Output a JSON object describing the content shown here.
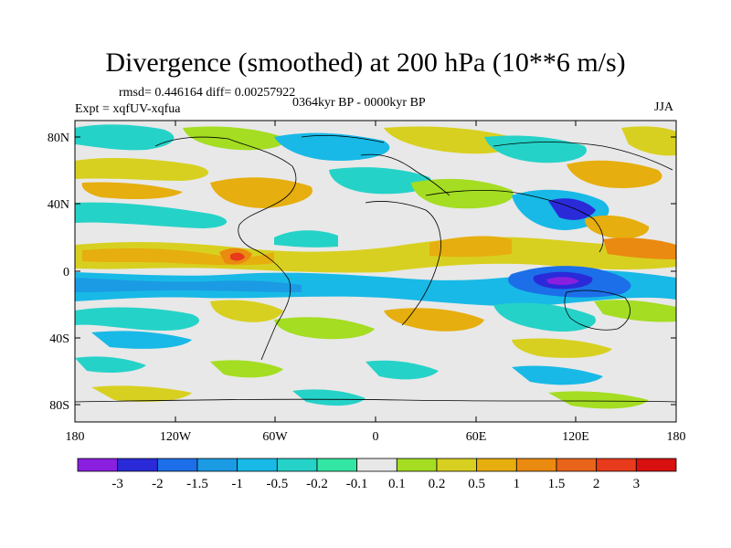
{
  "title": "Divergence (smoothed) at 200 hPa (10**6 m/s)",
  "stats": "rmsd= 0.446164 diff= 0.00257922",
  "period": "0364kyr BP - 0000kyr BP",
  "expt": "Expt = xqfUV-xqfua",
  "season": "JJA",
  "lat_labels": [
    "80N",
    "40N",
    "0",
    "40S",
    "80S"
  ],
  "lon_labels": [
    "180",
    "120W",
    "60W",
    "0",
    "60E",
    "120E",
    "180"
  ],
  "colorbar": {
    "labels": [
      "-3",
      "-2",
      "-1.5",
      "-1",
      "-0.5",
      "-0.2",
      "-0.1",
      "0.1",
      "0.2",
      "0.5",
      "1",
      "1.5",
      "2",
      "3"
    ],
    "colors": [
      "#8a1fe0",
      "#2a2ad8",
      "#1c6fe8",
      "#1b9be4",
      "#18b9e6",
      "#25d2c8",
      "#34e6a3",
      "#e8e8e8",
      "#a4dd22",
      "#d8d020",
      "#e6ae0e",
      "#ea8a10",
      "#e8641a",
      "#e83a1c",
      "#d81010"
    ]
  }
}
